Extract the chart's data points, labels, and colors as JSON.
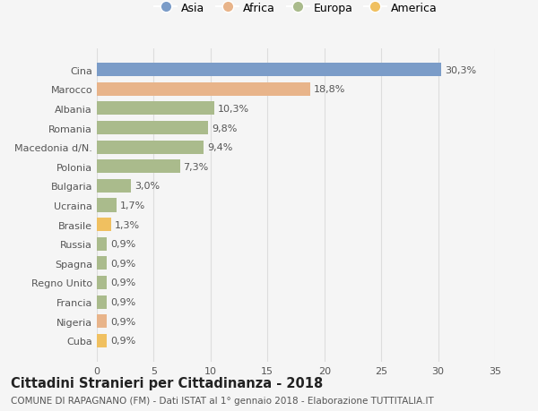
{
  "categories": [
    "Cina",
    "Marocco",
    "Albania",
    "Romania",
    "Macedonia d/N.",
    "Polonia",
    "Bulgaria",
    "Ucraina",
    "Brasile",
    "Russia",
    "Spagna",
    "Regno Unito",
    "Francia",
    "Nigeria",
    "Cuba"
  ],
  "values": [
    30.3,
    18.8,
    10.3,
    9.8,
    9.4,
    7.3,
    3.0,
    1.7,
    1.3,
    0.9,
    0.9,
    0.9,
    0.9,
    0.9,
    0.9
  ],
  "labels": [
    "30,3%",
    "18,8%",
    "10,3%",
    "9,8%",
    "9,4%",
    "7,3%",
    "3,0%",
    "1,7%",
    "1,3%",
    "0,9%",
    "0,9%",
    "0,9%",
    "0,9%",
    "0,9%",
    "0,9%"
  ],
  "colors": [
    "#7b9cc8",
    "#e8b48a",
    "#aabb8c",
    "#aabb8c",
    "#aabb8c",
    "#aabb8c",
    "#aabb8c",
    "#aabb8c",
    "#f0c060",
    "#aabb8c",
    "#aabb8c",
    "#aabb8c",
    "#aabb8c",
    "#e8b48a",
    "#f0c060"
  ],
  "legend_labels": [
    "Asia",
    "Africa",
    "Europa",
    "America"
  ],
  "legend_colors": [
    "#7b9cc8",
    "#e8b48a",
    "#aabb8c",
    "#f0c060"
  ],
  "title": "Cittadini Stranieri per Cittadinanza - 2018",
  "subtitle": "COMUNE DI RAPAGNANO (FM) - Dati ISTAT al 1° gennaio 2018 - Elaborazione TUTTITALIA.IT",
  "xlim": [
    0,
    35
  ],
  "xticks": [
    0,
    5,
    10,
    15,
    20,
    25,
    30,
    35
  ],
  "background_color": "#f5f5f5",
  "grid_color": "#dddddd",
  "bar_height": 0.7,
  "label_fontsize": 8,
  "tick_fontsize": 8,
  "title_fontsize": 10.5,
  "subtitle_fontsize": 7.5
}
